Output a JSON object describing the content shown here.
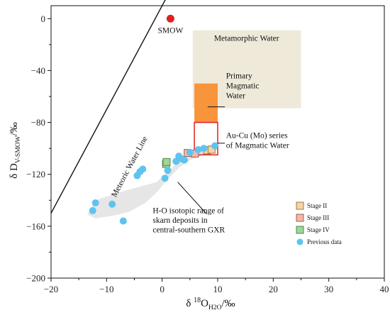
{
  "chart_data": {
    "type": "scatter",
    "xlim": [
      -20,
      40
    ],
    "ylim": [
      -200,
      10
    ],
    "x_ticks": [
      -20,
      -10,
      0,
      10,
      20,
      30,
      40
    ],
    "y_ticks": [
      0,
      -40,
      -80,
      -120,
      -160,
      -200
    ],
    "x_tick_labels": [
      "−20",
      "−10",
      "0",
      "10",
      "20",
      "30",
      "40"
    ],
    "y_tick_labels": [
      "0",
      "−40",
      "−80",
      "−120",
      "−160",
      "−200"
    ],
    "xlabel": {
      "pre": "δ ",
      "sup": "18",
      "main": "O",
      "sub": "H2O",
      "post": "/‰"
    },
    "ylabel": {
      "main": "δ D",
      "sub": "V-SMOW",
      "post": "/‰"
    },
    "grid": false,
    "smow": {
      "label": "SMOW",
      "x": 1.5,
      "y": 0,
      "color": "#e02020"
    },
    "meteoric_line": {
      "label": "Meteoric Water Line",
      "slope": 8,
      "intercept": 10,
      "x_range": [
        -20,
        2.9
      ]
    },
    "regions": {
      "metamorphic": {
        "label": "Metamorphic Water",
        "x": [
          5.5,
          25
        ],
        "y": [
          -69,
          -9
        ],
        "color": "#efe9da"
      },
      "primary_magmatic": {
        "label_lines": [
          "Primary",
          "Magmatic",
          "Water"
        ],
        "x": [
          5.8,
          10
        ],
        "y": [
          -80,
          -50
        ],
        "color": "#f7943c"
      },
      "au_cu_mo": {
        "label_lines": [
          "Au-Cu (Mo) series",
          "of Magmatic Water"
        ],
        "x": [
          5.8,
          10
        ],
        "y": [
          -105,
          -80
        ],
        "color": "#e02020"
      },
      "skarn_range": {
        "label_lines": [
          "H-O isotopic range of",
          "skarn deposits in",
          "central-southern GXR"
        ],
        "color": "#e6e6e6",
        "polygon": [
          [
            -13,
            -148
          ],
          [
            -12,
            -140
          ],
          [
            -7,
            -133
          ],
          [
            -1,
            -126
          ],
          [
            1,
            -118
          ],
          [
            3,
            -110
          ],
          [
            4,
            -106
          ],
          [
            5.5,
            -102
          ],
          [
            7,
            -99
          ],
          [
            9,
            -97
          ],
          [
            10.5,
            -98
          ],
          [
            10,
            -101
          ],
          [
            8,
            -104
          ],
          [
            5,
            -109
          ],
          [
            3,
            -115
          ],
          [
            1,
            -124
          ],
          [
            -1,
            -134
          ],
          [
            -3,
            -142
          ],
          [
            -6,
            -149
          ],
          [
            -9,
            -152
          ],
          [
            -12,
            -154
          ],
          [
            -13.5,
            -151
          ]
        ]
      }
    },
    "series": [
      {
        "name": "Stage II",
        "marker": "square",
        "color": "#f5d5a3",
        "edge": "#9a7a48",
        "points": [
          [
            8.1,
            -101.5
          ],
          [
            8.9,
            -101
          ]
        ]
      },
      {
        "name": "Stage III",
        "marker": "square",
        "color": "#f4b8a6",
        "edge": "#a06050",
        "points": [
          [
            4.6,
            -103.5
          ],
          [
            5.9,
            -104
          ]
        ]
      },
      {
        "name": "Stage IV",
        "marker": "square",
        "color": "#9fd59b",
        "edge": "#4f8a4a",
        "points": [
          [
            0.7,
            -112
          ],
          [
            0.8,
            -110.5
          ]
        ]
      },
      {
        "name": "Previous data",
        "marker": "circle",
        "color": "#5fc3f0",
        "points": [
          [
            -12.5,
            -148
          ],
          [
            -12,
            -142
          ],
          [
            -9,
            -143
          ],
          [
            -7,
            -156
          ],
          [
            -4.5,
            -121
          ],
          [
            -4,
            -118
          ],
          [
            -3.5,
            -116
          ],
          [
            0.5,
            -123
          ],
          [
            1,
            -117
          ],
          [
            2.5,
            -110
          ],
          [
            3,
            -106
          ],
          [
            3.5,
            -108
          ],
          [
            4,
            -109
          ],
          [
            5,
            -103
          ],
          [
            6.5,
            -101
          ],
          [
            7.5,
            -100
          ],
          [
            9.5,
            -98
          ]
        ]
      }
    ]
  }
}
